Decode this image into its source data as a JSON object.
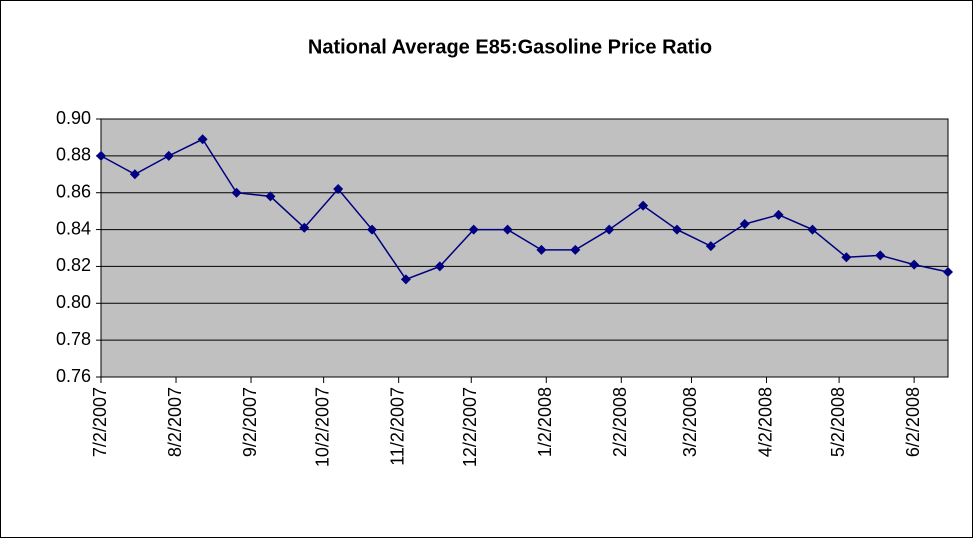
{
  "chart_data": {
    "type": "line",
    "title": "National Average E85:Gasoline Price Ratio",
    "x": [
      "7/2/2007",
      "7/16/2007",
      "7/30/2007",
      "8/13/2007",
      "8/27/2007",
      "9/10/2007",
      "9/24/2007",
      "10/8/2007",
      "10/22/2007",
      "11/5/2007",
      "11/19/2007",
      "12/3/2007",
      "12/17/2007",
      "12/31/2007",
      "1/14/2008",
      "1/28/2008",
      "2/11/2008",
      "2/25/2008",
      "3/10/2008",
      "3/24/2008",
      "4/7/2008",
      "4/21/2008",
      "5/5/2008",
      "5/19/2008",
      "6/2/2008",
      "6/16/2008"
    ],
    "series": [
      {
        "name": "E85:Gasoline Price Ratio",
        "color": "#000080",
        "values": [
          0.88,
          0.87,
          0.88,
          0.889,
          0.86,
          0.858,
          0.841,
          0.862,
          0.84,
          0.813,
          0.82,
          0.84,
          0.84,
          0.829,
          0.829,
          0.84,
          0.853,
          0.84,
          0.831,
          0.843,
          0.848,
          0.84,
          0.825,
          0.826,
          0.821,
          0.817
        ]
      }
    ],
    "xlim": [
      "7/2/2007",
      "6/16/2008"
    ],
    "xticks": [
      "7/2/2007",
      "8/2/2007",
      "9/2/2007",
      "10/2/2007",
      "11/2/2007",
      "12/2/2007",
      "1/2/2008",
      "2/2/2008",
      "3/2/2008",
      "4/2/2008",
      "5/2/2008",
      "6/2/2008"
    ],
    "ylim": [
      0.76,
      0.9
    ],
    "yticks": [
      {
        "value": 0.76,
        "label": "0.76"
      },
      {
        "value": 0.78,
        "label": "0.78"
      },
      {
        "value": 0.8,
        "label": "0.80"
      },
      {
        "value": 0.82,
        "label": "0.82"
      },
      {
        "value": 0.84,
        "label": "0.84"
      },
      {
        "value": 0.86,
        "label": "0.86"
      },
      {
        "value": 0.88,
        "label": "0.88"
      },
      {
        "value": 0.9,
        "label": "0.90"
      }
    ],
    "grid": true,
    "plot_background": "#c0c0c0"
  }
}
